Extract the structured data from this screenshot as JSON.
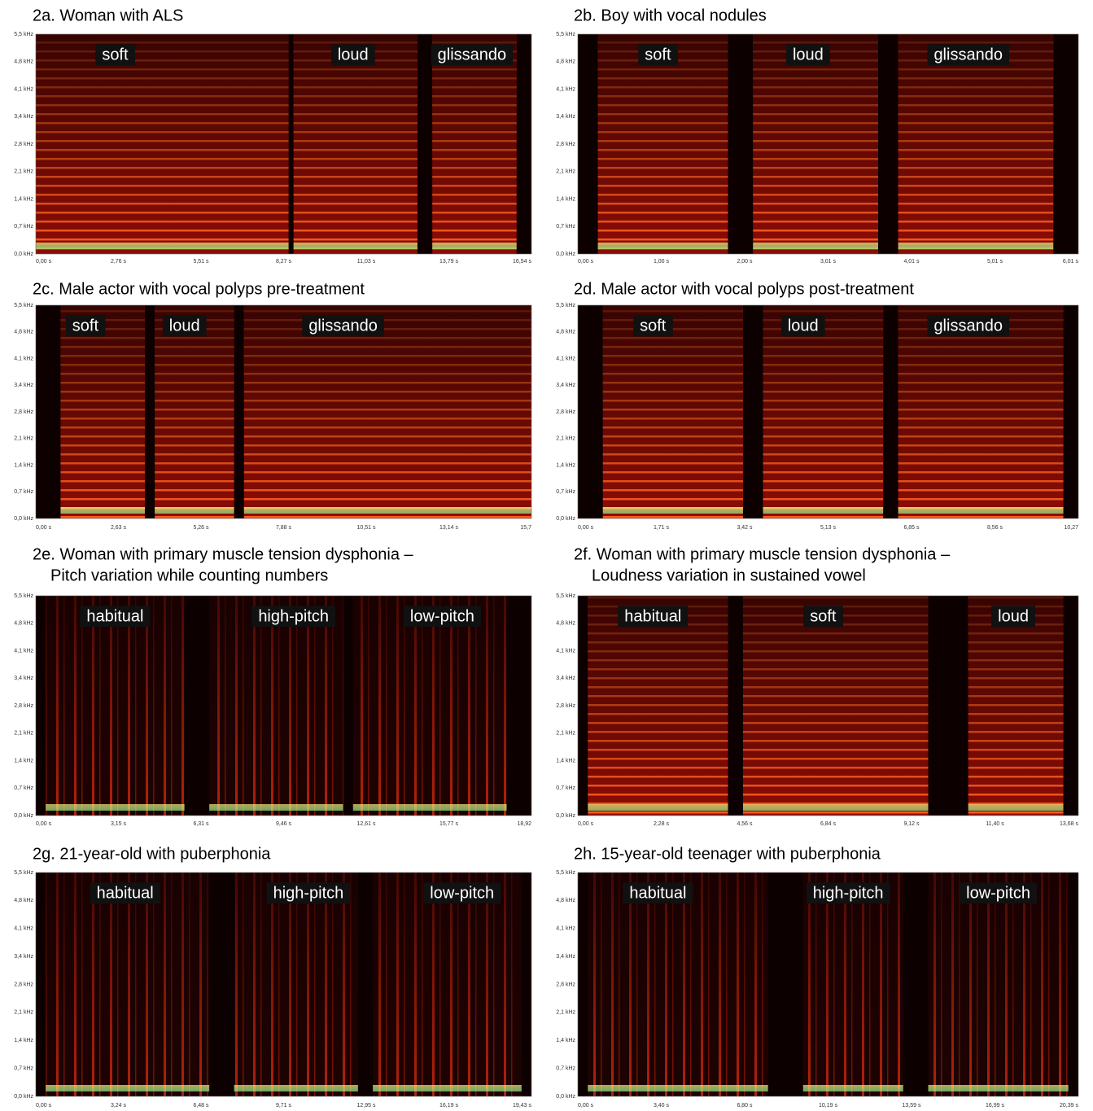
{
  "y_axis_ticks": [
    "5,5 kHz",
    "4,8 kHz",
    "4,1 kHz",
    "3,4 kHz",
    "2,8 kHz",
    "2,1 kHz",
    "1,4 kHz",
    "0,7 kHz",
    "0,0 kHz"
  ],
  "panels": [
    {
      "title": [
        "2a. Woman with ALS"
      ],
      "labels": [
        "soft",
        "loud",
        "glissando"
      ],
      "x_ticks": [
        "0,00 s",
        "2,76 s",
        "5,51 s",
        "8,27 s",
        "11,03 s",
        "13,79 s",
        "16,54 s"
      ]
    },
    {
      "title": [
        "2b. Boy with vocal nodules"
      ],
      "labels": [
        "soft",
        "loud",
        "glissando"
      ],
      "x_ticks": [
        "0,00 s",
        "1,00 s",
        "2,00 s",
        "3,01 s",
        "4,01 s",
        "5,01 s",
        "6,01 s"
      ]
    },
    {
      "title": [
        "2c. Male actor with vocal polyps pre-treatment"
      ],
      "labels": [
        "soft",
        "loud",
        "glissando"
      ],
      "x_ticks": [
        "0,00 s",
        "2,63 s",
        "5,26 s",
        "7,88 s",
        "10,51 s",
        "13,14 s",
        "15,7"
      ]
    },
    {
      "title": [
        "2d. Male actor with vocal polyps post-treatment"
      ],
      "labels": [
        "soft",
        "loud",
        "glissando"
      ],
      "x_ticks": [
        "0,00 s",
        "1,71 s",
        "3,42 s",
        "5,13 s",
        "6,85 s",
        "8,56 s",
        "10,27"
      ]
    },
    {
      "title": [
        "2e. Woman with primary muscle tension dysphonia –",
        "Pitch variation while counting numbers"
      ],
      "labels": [
        "habitual",
        "high-pitch",
        "low-pitch"
      ],
      "x_ticks": [
        "0,00 s",
        "3,15 s",
        "6,31 s",
        "9,46 s",
        "12,61 s",
        "15,77 s",
        "18,92"
      ]
    },
    {
      "title": [
        "2f. Woman with primary muscle tension dysphonia –",
        "Loudness variation in sustained vowel"
      ],
      "labels": [
        "habitual",
        "soft",
        "loud"
      ],
      "x_ticks": [
        "0,00 s",
        "2,28 s",
        "4,56 s",
        "6,84 s",
        "9,12 s",
        "11,40 s",
        "13,68 s"
      ]
    },
    {
      "title": [
        "2g. 21-year-old with puberphonia"
      ],
      "labels": [
        "habitual",
        "high-pitch",
        "low-pitch"
      ],
      "x_ticks": [
        "0,00 s",
        "3,24 s",
        "6,48 s",
        "9,71 s",
        "12,95 s",
        "16,19 s",
        "19,43 s"
      ]
    },
    {
      "title": [
        "2h. 15-year-old teenager with puberphonia"
      ],
      "labels": [
        "habitual",
        "high-pitch",
        "low-pitch"
      ],
      "x_ticks": [
        "0,00 s",
        "3,40 s",
        "6,80 s",
        "10,19 s",
        "13,59 s",
        "16,99 s",
        "20,39 s"
      ]
    }
  ]
}
